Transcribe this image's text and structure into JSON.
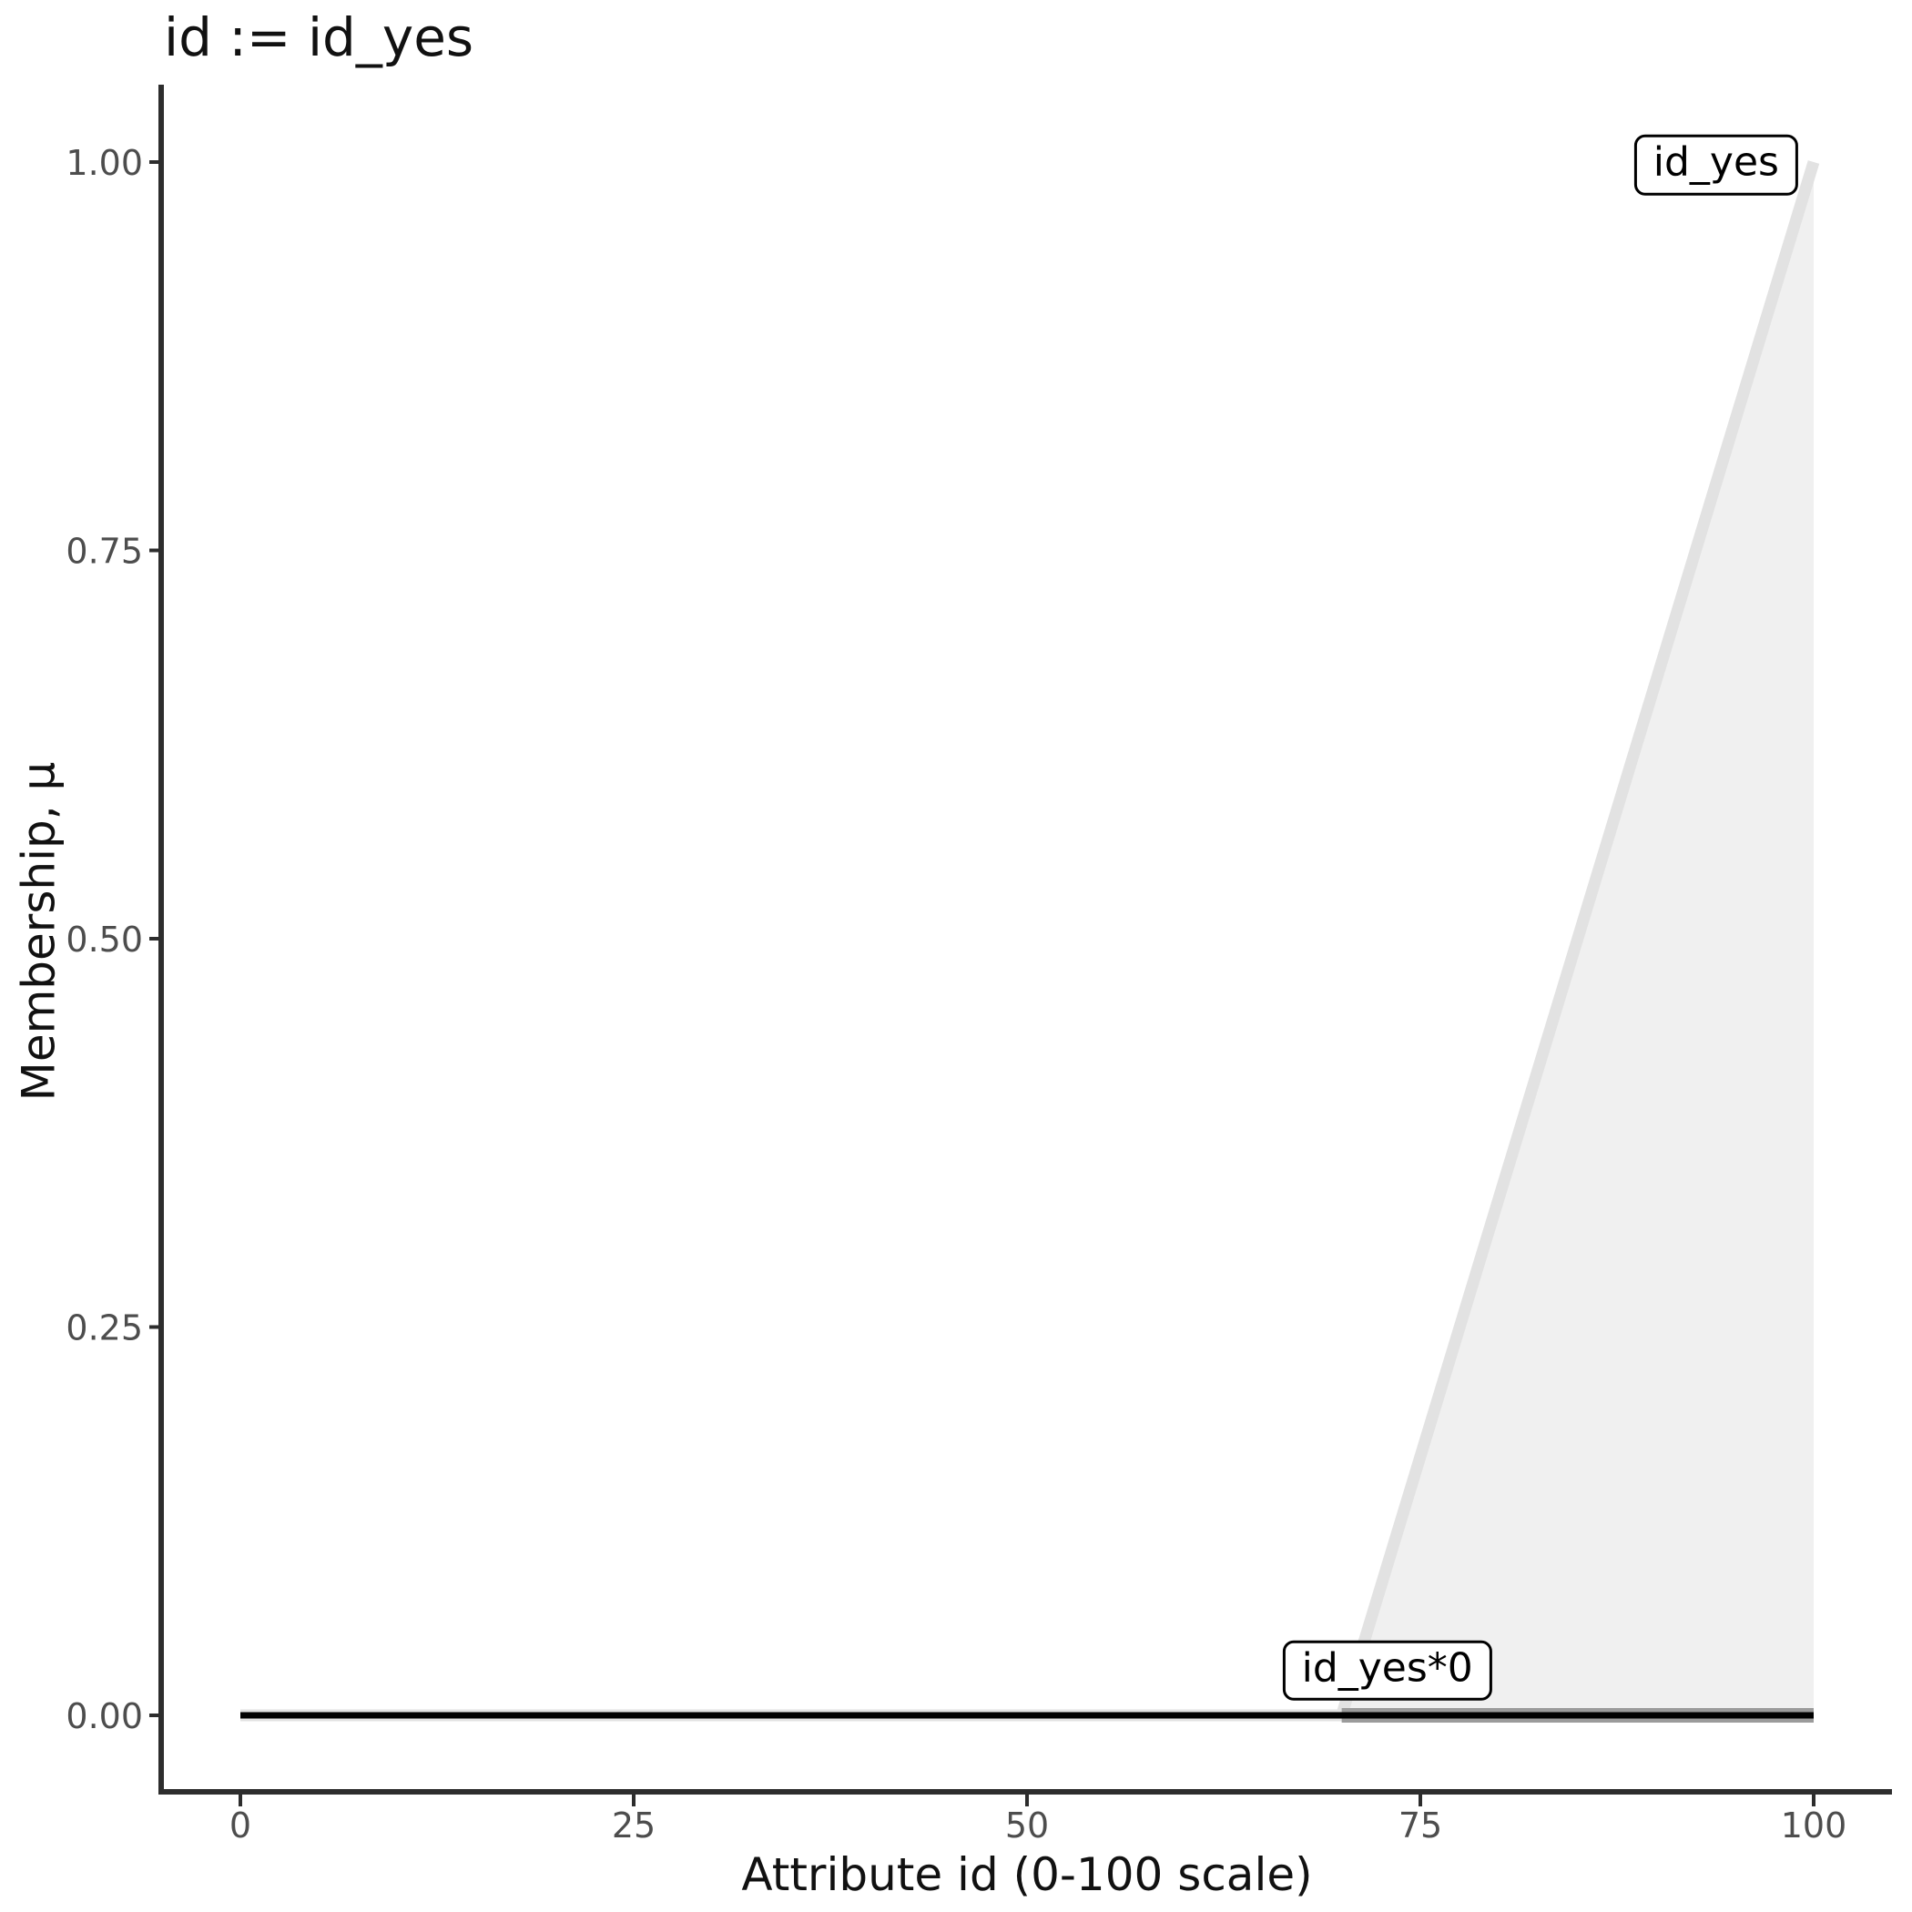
{
  "title": "id := id_yes",
  "chart_data": {
    "type": "line",
    "title": "id := id_yes",
    "xlabel": "Attribute id (0-100 scale)",
    "ylabel": "Membership, μ",
    "xlim": [
      0,
      100
    ],
    "ylim": [
      0,
      1
    ],
    "grid": false,
    "legend_position": "none",
    "x_ticks": [
      {
        "v": 0,
        "label": "0"
      },
      {
        "v": 25,
        "label": "25"
      },
      {
        "v": 50,
        "label": "50"
      },
      {
        "v": 75,
        "label": "75"
      },
      {
        "v": 100,
        "label": "100"
      }
    ],
    "y_ticks": [
      {
        "v": 0.0,
        "label": "0.00"
      },
      {
        "v": 0.25,
        "label": "0.25"
      },
      {
        "v": 0.5,
        "label": "0.50"
      },
      {
        "v": 0.75,
        "label": "0.75"
      },
      {
        "v": 1.0,
        "label": "1.00"
      }
    ],
    "series": [
      {
        "name": "id_yes",
        "points": [
          [
            0,
            0
          ],
          [
            70,
            0
          ],
          [
            100,
            1
          ]
        ],
        "color": "#e2e2e2",
        "width": 13,
        "fill": "#f0f0f0",
        "fill_polygon": [
          [
            70,
            0
          ],
          [
            100,
            1
          ],
          [
            100,
            0
          ]
        ]
      },
      {
        "name": "id_yes*0 support band",
        "points": [
          [
            70,
            0
          ],
          [
            100,
            0
          ]
        ],
        "color": "#9b9b9b",
        "width": 16
      },
      {
        "name": "id_yes*0",
        "points": [
          [
            0,
            0
          ],
          [
            100,
            0
          ]
        ],
        "color": "#000000",
        "width": 7
      }
    ],
    "annotations": [
      {
        "label": "id_yes",
        "x": 93.8,
        "y": 0.998
      },
      {
        "label": "id_yes*0",
        "x": 72.9,
        "y": 0.029
      }
    ],
    "colors": {
      "axis": "#2d2d2d",
      "tick_label": "#4d4d4d",
      "membership_line": "#e2e2e2",
      "membership_fill": "#f0f0f0",
      "zero_band": "#9b9b9b",
      "result_line": "#000000"
    }
  }
}
